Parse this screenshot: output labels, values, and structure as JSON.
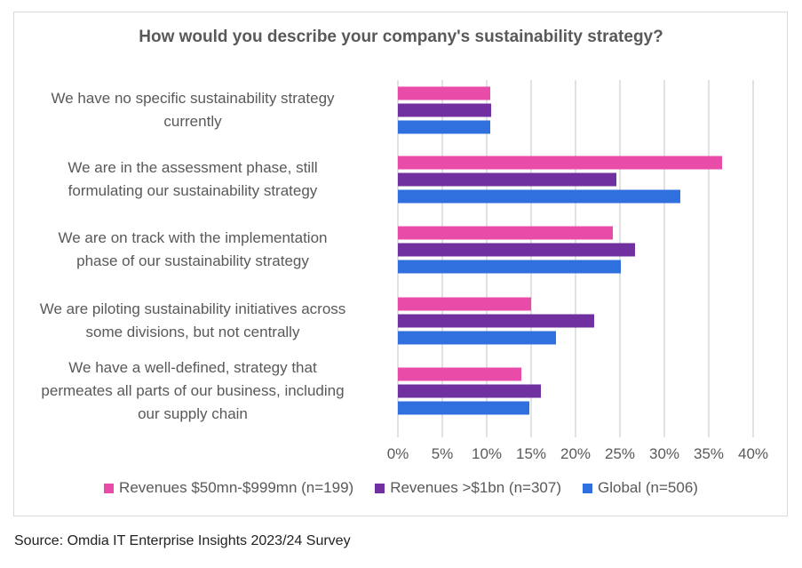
{
  "chart_data": {
    "type": "bar",
    "orientation": "horizontal",
    "title": "How would you describe your company's sustainability strategy?",
    "categories": [
      "We have no specific sustainability strategy currently",
      "We are in the assessment phase, still formulating our sustainability strategy",
      "We are on track with the implementation phase of our sustainability strategy",
      "We are piloting sustainability initiatives across some divisions, but not centrally",
      "We have a well-defined, strategy that permeates all parts of our business, including our supply chain"
    ],
    "category_lines": [
      [
        "We have no specific sustainability strategy",
        "currently"
      ],
      [
        "We are in the assessment phase, still",
        "formulating our sustainability strategy"
      ],
      [
        "We are on track with the implementation",
        "phase of our sustainability strategy"
      ],
      [
        "We are piloting sustainability initiatives across",
        "some divisions, but not centrally"
      ],
      [
        "We have a well-defined, strategy that",
        "permeates all parts of our business, including",
        "our supply chain"
      ]
    ],
    "series": [
      {
        "name": "Revenues $50mn-$999mn (n=199)",
        "color": "#E84BA8",
        "values": [
          10.4,
          36.5,
          24.2,
          15.0,
          13.9
        ]
      },
      {
        "name": "Revenues >$1bn (n=307)",
        "color": "#7030A0",
        "values": [
          10.5,
          24.6,
          26.7,
          22.1,
          16.1
        ]
      },
      {
        "name": "Global (n=506)",
        "color": "#2F6FDE",
        "values": [
          10.4,
          31.8,
          25.1,
          17.8,
          14.8
        ]
      }
    ],
    "xlim": [
      0,
      40
    ],
    "xticks": [
      "0%",
      "5%",
      "10%",
      "15%",
      "20%",
      "25%",
      "30%",
      "35%",
      "40%"
    ],
    "grid": true,
    "legend_position": "bottom",
    "xlabel": "",
    "ylabel": ""
  },
  "source": "Source: Omdia IT Enterprise Insights 2023/24 Survey"
}
